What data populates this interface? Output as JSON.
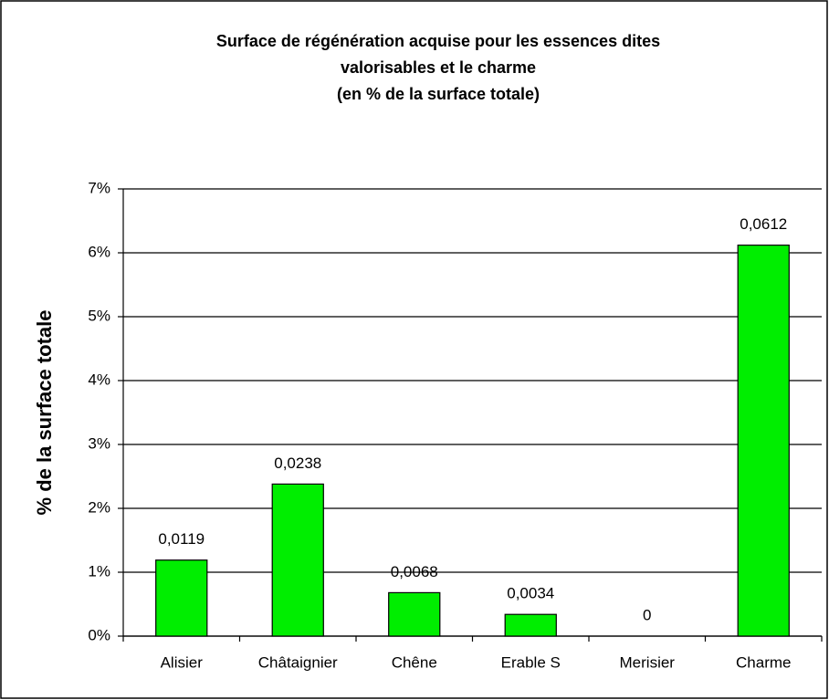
{
  "chart_data": {
    "type": "bar",
    "title": [
      "Surface de régénération  acquise pour les essences dites",
      "valorisables  et le charme",
      "(en % de la surface totale)"
    ],
    "ylabel": "% de la surface totale",
    "categories": [
      "Alisier",
      "Châtaignier",
      "Chêne",
      "Erable S",
      "Merisier",
      "Charme"
    ],
    "values": [
      0.0119,
      0.0238,
      0.0068,
      0.0034,
      0,
      0.0612
    ],
    "value_labels": [
      "0,0119",
      "0,0238",
      "0,0068",
      "0,0034",
      "0",
      "0,0612"
    ],
    "color": "#00ee00",
    "ylim": [
      0,
      0.07
    ],
    "yticks": [
      {
        "value": 0,
        "label": "0%"
      },
      {
        "value": 0.01,
        "label": "1%"
      },
      {
        "value": 0.02,
        "label": "2%"
      },
      {
        "value": 0.03,
        "label": "3%"
      },
      {
        "value": 0.04,
        "label": "4%"
      },
      {
        "value": 0.05,
        "label": "5%"
      },
      {
        "value": 0.06,
        "label": "6%"
      },
      {
        "value": 0.07,
        "label": "7%"
      }
    ],
    "grid": true
  }
}
